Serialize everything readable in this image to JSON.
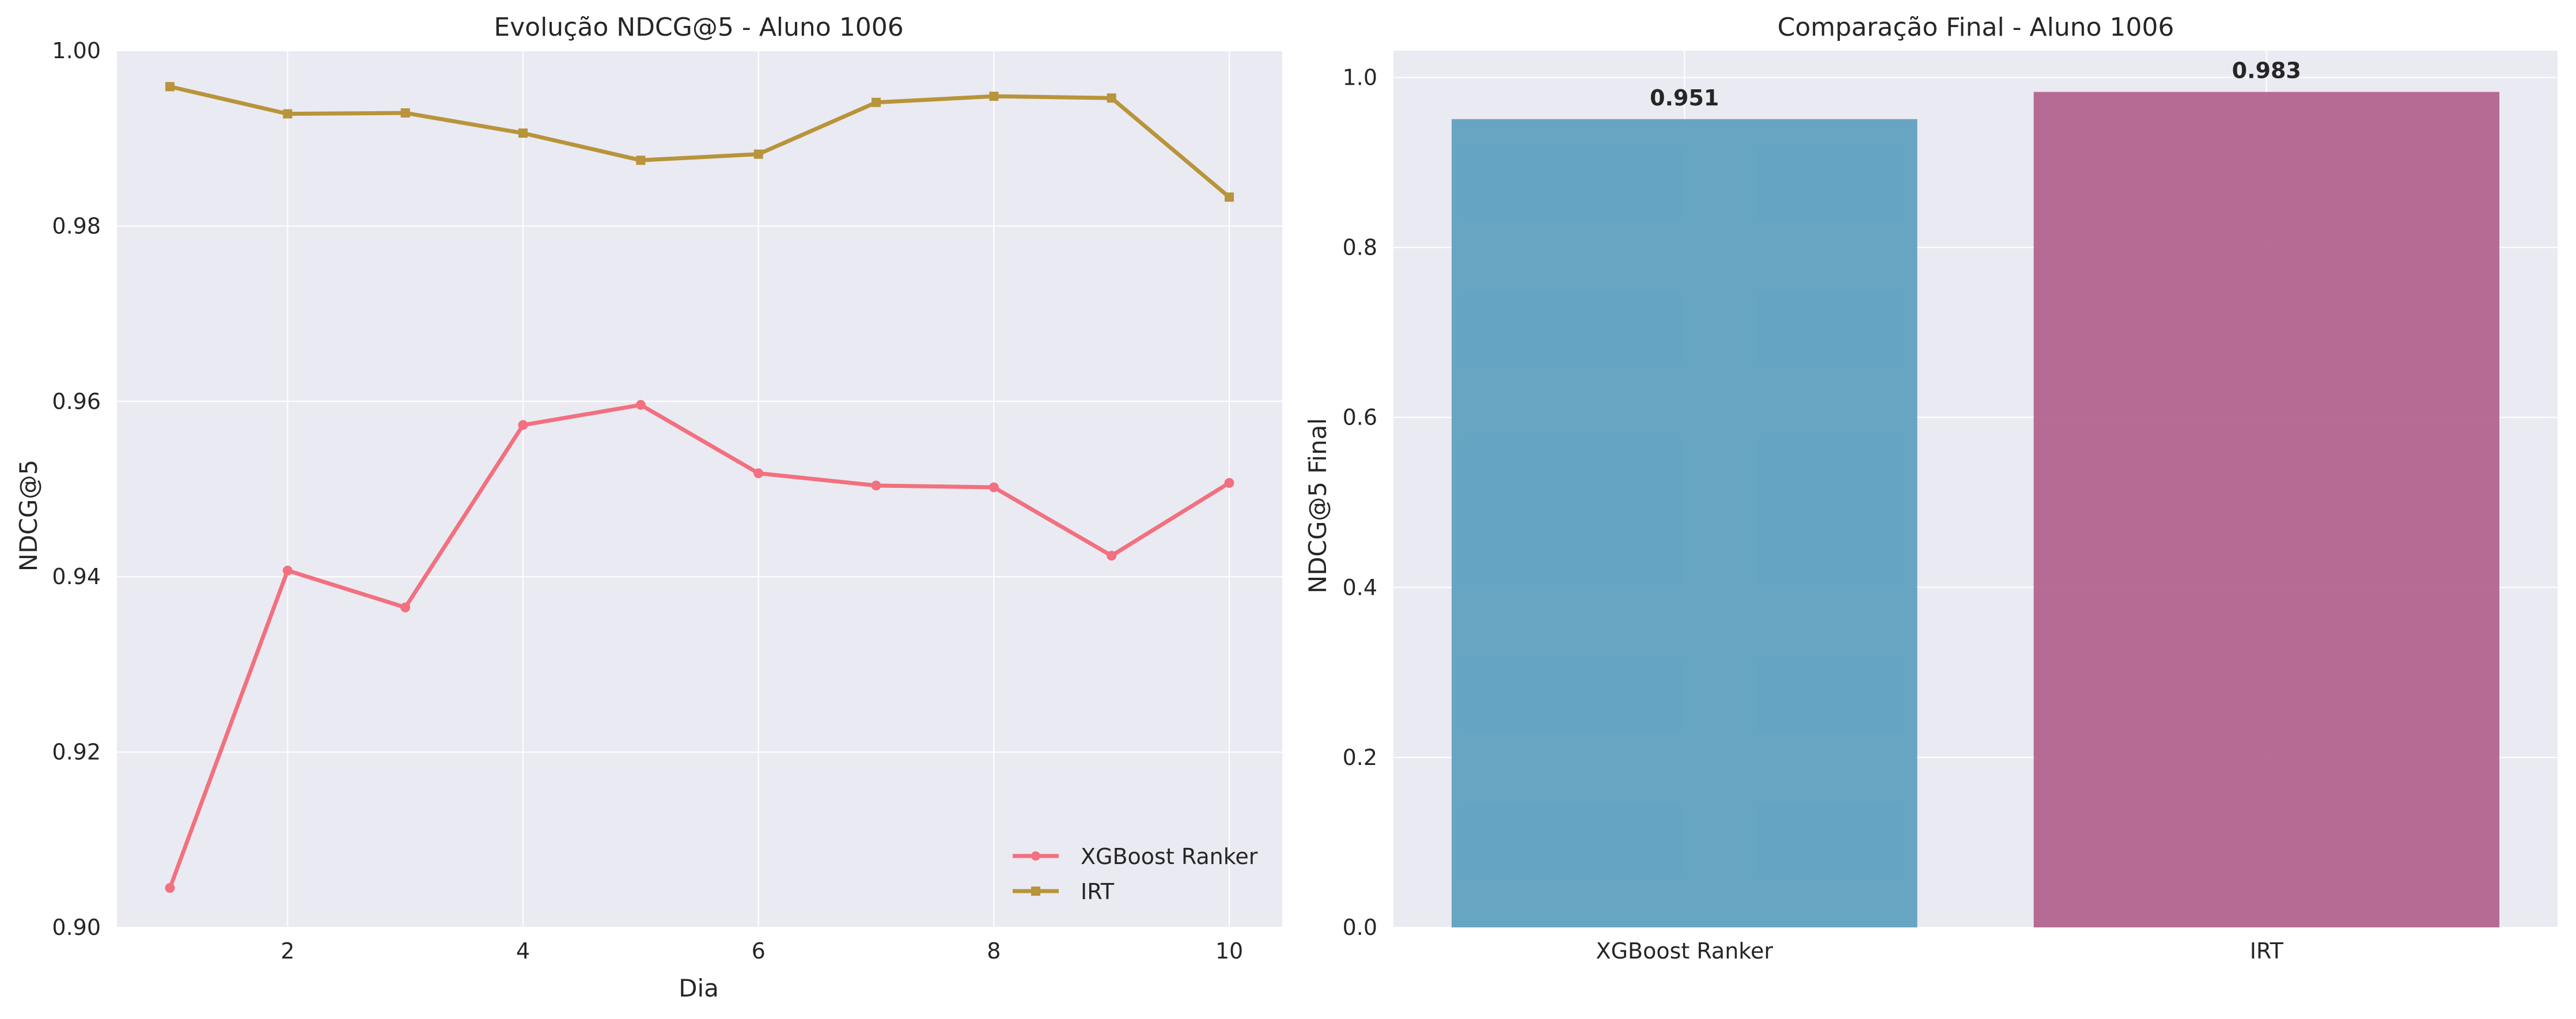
{
  "colors": {
    "plot_bg": "#eaeaf2",
    "grid": "#ffffff",
    "text": "#262626",
    "xgb": "#f2707f",
    "irt": "#b8943a",
    "bar_xgb": "#5b9ebf",
    "bar_irt": "#b0608b"
  },
  "chart_data": [
    {
      "type": "line",
      "title": "Evolução NDCG@5 - Aluno 1006",
      "xlabel": "Dia",
      "ylabel": "NDCG@5",
      "xlim": [
        0.55,
        10.45
      ],
      "ylim": [
        0.9,
        1.0
      ],
      "xticks": [
        2,
        4,
        6,
        8,
        10
      ],
      "xtick_labels": [
        "2",
        "4",
        "6",
        "8",
        "10"
      ],
      "yticks": [
        0.9,
        0.92,
        0.94,
        0.96,
        0.98,
        1.0
      ],
      "ytick_labels": [
        "0.90",
        "0.92",
        "0.94",
        "0.96",
        "0.98",
        "1.00"
      ],
      "grid": true,
      "legend_position": "lower-right",
      "x": [
        1,
        2,
        3,
        4,
        5,
        6,
        7,
        8,
        9,
        10
      ],
      "series": [
        {
          "name": "XGBoost Ranker",
          "marker": "circle",
          "color": "#f2707f",
          "values": [
            0.9045,
            0.9407,
            0.9365,
            0.9573,
            0.9596,
            0.9518,
            0.9504,
            0.9502,
            0.9424,
            0.9507
          ]
        },
        {
          "name": "IRT",
          "marker": "square",
          "color": "#b8943a",
          "values": [
            0.9959,
            0.9928,
            0.9929,
            0.9906,
            0.9875,
            0.9882,
            0.9941,
            0.9948,
            0.9946,
            0.9833
          ]
        }
      ]
    },
    {
      "type": "bar",
      "title": "Comparação Final - Aluno 1006",
      "xlabel": "",
      "ylabel": "NDCG@5 Final",
      "ylim": [
        0,
        1.0315
      ],
      "yticks": [
        0.0,
        0.2,
        0.4,
        0.6,
        0.8,
        1.0
      ],
      "ytick_labels": [
        "0.0",
        "0.2",
        "0.4",
        "0.6",
        "0.8",
        "1.0"
      ],
      "grid": true,
      "categories": [
        "XGBoost Ranker",
        "IRT"
      ],
      "values": [
        0.951,
        0.983
      ],
      "value_labels": [
        "0.951",
        "0.983"
      ],
      "colors": [
        "#5b9ebf",
        "#b0608b"
      ]
    }
  ]
}
